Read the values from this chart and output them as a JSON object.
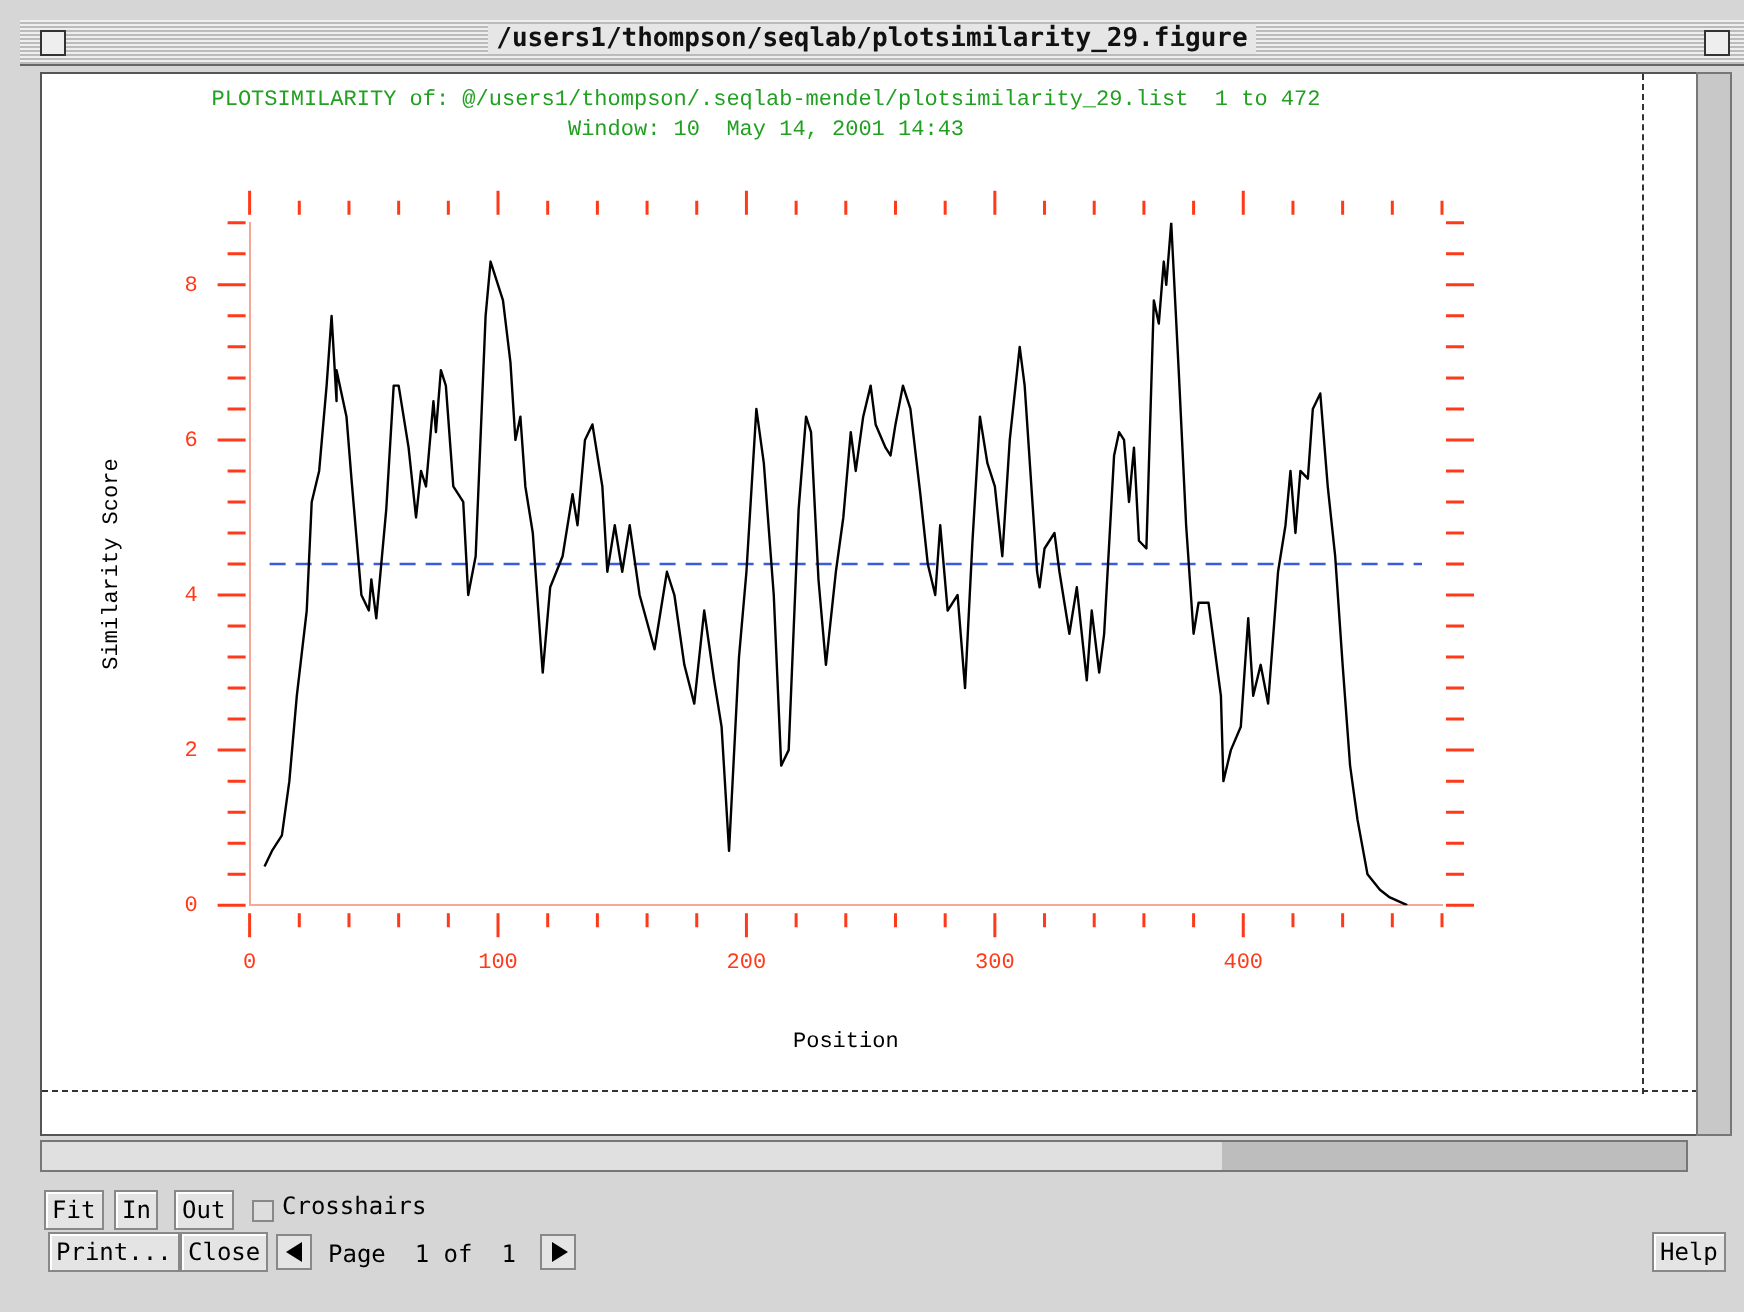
{
  "chart_data": {
    "type": "line",
    "title": "PLOTSIMILARITY of: @/users1/thompson/.seqlab-mendel/plotsimilarity_29.list  1 to 472",
    "subtitle": "Window: 10  May 14, 2001 14:43",
    "xlabel": "Position",
    "ylabel": "Similarity Score",
    "annotations": [
      "/users1/thompson/seqlab/plotsimilarity_29.figure",
      "Fit",
      "In",
      "Out",
      "Crosshairs",
      "Print...",
      "Close",
      "Page  1 of  1",
      "Help"
    ],
    "x": [
      6,
      9,
      13,
      16,
      19,
      23,
      25,
      28,
      31,
      33,
      35,
      35,
      39,
      41,
      45,
      48,
      49,
      51,
      55,
      58,
      60,
      64,
      67,
      69,
      71,
      74,
      75,
      77,
      79,
      82,
      86,
      88,
      91,
      95,
      97,
      99,
      102,
      105,
      107,
      109,
      111,
      114,
      118,
      121,
      126,
      130,
      132,
      135,
      138,
      142,
      144,
      147,
      150,
      153,
      157,
      163,
      168,
      171,
      175,
      179,
      183,
      187,
      190,
      193,
      197,
      200,
      204,
      207,
      211,
      214,
      217,
      221,
      224,
      226,
      229,
      232,
      236,
      239,
      242,
      244,
      247,
      250,
      252,
      256,
      258,
      260,
      263,
      266,
      270,
      273,
      276,
      278,
      281,
      285,
      288,
      291,
      294,
      297,
      300,
      303,
      306,
      310,
      312,
      317,
      318,
      320,
      324,
      326,
      330,
      333,
      337,
      339,
      342,
      344,
      348,
      350,
      352,
      354,
      356,
      358,
      361,
      364,
      366,
      368,
      369,
      371,
      374,
      377,
      380,
      382,
      386,
      391,
      392,
      395,
      399,
      402,
      404,
      407,
      410,
      414,
      417,
      419,
      421,
      423,
      426,
      428,
      431,
      434,
      437,
      440,
      443,
      446,
      450,
      455,
      459,
      466
    ],
    "series": [
      {
        "color": "#000000",
        "values": [
          0.5,
          0.7,
          0.9,
          1.6,
          2.7,
          3.8,
          5.2,
          5.6,
          6.7,
          7.6,
          6.5,
          6.9,
          6.3,
          5.5,
          4.0,
          3.8,
          4.2,
          3.7,
          5.1,
          6.7,
          6.7,
          5.9,
          5.0,
          5.6,
          5.4,
          6.5,
          6.1,
          6.9,
          6.7,
          5.4,
          5.2,
          4.0,
          4.5,
          7.6,
          8.3,
          8.1,
          7.8,
          7.0,
          6.0,
          6.3,
          5.4,
          4.8,
          3.0,
          4.1,
          4.5,
          5.3,
          4.9,
          6.0,
          6.2,
          5.4,
          4.3,
          4.9,
          4.3,
          4.9,
          4.0,
          3.3,
          4.3,
          4.0,
          3.1,
          2.6,
          3.8,
          2.9,
          2.3,
          0.7,
          3.2,
          4.3,
          6.4,
          5.7,
          4.0,
          1.8,
          2.0,
          5.1,
          6.3,
          6.1,
          4.2,
          3.1,
          4.3,
          5.0,
          6.1,
          5.6,
          6.3,
          6.7,
          6.2,
          5.9,
          5.8,
          6.2,
          6.7,
          6.4,
          5.3,
          4.4,
          4.0,
          4.9,
          3.8,
          4.0,
          2.8,
          4.7,
          6.3,
          5.7,
          5.4,
          4.5,
          6.0,
          7.2,
          6.7,
          4.3,
          4.1,
          4.6,
          4.8,
          4.3,
          3.5,
          4.1,
          2.9,
          3.8,
          3.0,
          3.5,
          5.8,
          6.1,
          6.0,
          5.2,
          5.9,
          4.7,
          4.6,
          7.8,
          7.5,
          8.3,
          8.0,
          8.8,
          6.9,
          4.9,
          3.5,
          3.9,
          3.9,
          2.7,
          1.6,
          2.0,
          2.3,
          3.7,
          2.7,
          3.1,
          2.6,
          4.3,
          4.9,
          5.6,
          4.8,
          5.6,
          5.5,
          6.4,
          6.6,
          5.4,
          4.5,
          3.1,
          1.8,
          1.1,
          0.4,
          0.2,
          0.1,
          0.0
        ]
      }
    ],
    "xticks": [
      0,
      {
        "value": 20,
        "label": null
      },
      {
        "value": 40,
        "label": null
      },
      {
        "value": 60,
        "label": null
      },
      {
        "value": 80,
        "label": null
      },
      100,
      {
        "value": 120,
        "label": null
      },
      {
        "value": 140,
        "label": null
      },
      {
        "value": 160,
        "label": null
      },
      {
        "value": 180,
        "label": null
      },
      200,
      {
        "value": 220,
        "label": null
      },
      {
        "value": 240,
        "label": null
      },
      {
        "value": 260,
        "label": null
      },
      {
        "value": 280,
        "label": null
      },
      300,
      {
        "value": 320,
        "label": null
      },
      {
        "value": 340,
        "label": null
      },
      {
        "value": 360,
        "label": null
      },
      {
        "value": 380,
        "label": null
      },
      400,
      {
        "value": 420,
        "label": null
      },
      {
        "value": 440,
        "label": null
      },
      {
        "value": 460,
        "label": null
      },
      {
        "value": 480,
        "label": null
      }
    ],
    "yticks": [
      0,
      {
        "value": 0.4,
        "label": null
      },
      {
        "value": 0.8,
        "label": null
      },
      {
        "value": 1.2,
        "label": null
      },
      {
        "value": 1.6,
        "label": null
      },
      2,
      {
        "value": 2.4,
        "label": null
      },
      {
        "value": 2.8,
        "label": null
      },
      {
        "value": 3.2,
        "label": null
      },
      {
        "value": 3.6,
        "label": null
      },
      4,
      {
        "value": 4.4,
        "label": null
      },
      {
        "value": 4.8,
        "label": null
      },
      {
        "value": 5.2,
        "label": null
      },
      {
        "value": 5.6,
        "label": null
      },
      6,
      {
        "value": 6.4,
        "label": null
      },
      {
        "value": 6.8,
        "label": null
      },
      {
        "value": 7.2,
        "label": null
      },
      {
        "value": 7.6,
        "label": null
      },
      8,
      {
        "value": 8.4,
        "label": null
      },
      {
        "value": 8.8,
        "label": null
      }
    ],
    "xlim": [
      0,
      480
    ],
    "ylim": [
      0,
      8.8
    ],
    "ref_lines": [
      {
        "axis": "y",
        "value": 4.4,
        "color": "#3b5bdb",
        "line_style": "dashed"
      }
    ],
    "grid": false,
    "legend": false,
    "marker": "none",
    "line_style": "solid"
  }
}
